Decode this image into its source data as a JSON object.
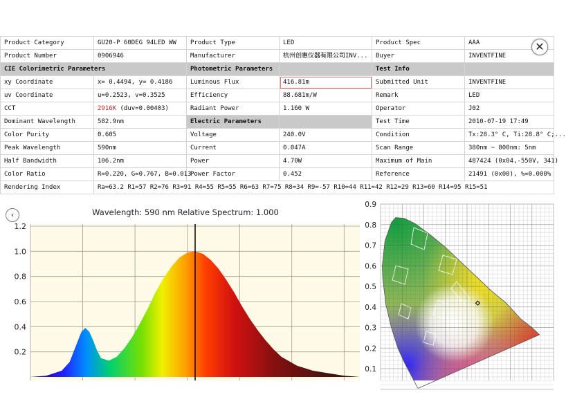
{
  "close_glyph": "✕",
  "back_glyph": "‹",
  "rows": [
    [
      {
        "t": "Product Category"
      },
      {
        "t": "GU20-P 60DEG 94LED WW"
      },
      {
        "t": "Product Type"
      },
      {
        "t": "LED"
      },
      {
        "t": "Product Spec"
      },
      {
        "t": "AAA"
      }
    ],
    [
      {
        "t": "Product Number"
      },
      {
        "t": "0906946"
      },
      {
        "t": "Manufacturer"
      },
      {
        "t": "杭州创惠仪器有限公司INV..."
      },
      {
        "t": "Buyer"
      },
      {
        "t": "INVENTFINE"
      }
    ],
    [
      {
        "t": "CIE Colorimetric Parameters",
        "s": 1
      },
      {
        "t": "",
        "s": 2
      },
      {
        "t": "Photometric Parameters",
        "s": 1
      },
      {
        "t": "",
        "s": 2
      },
      {
        "t": "Test Info",
        "s": 1
      },
      {
        "t": "",
        "s": 2
      }
    ],
    [
      {
        "t": "xy Coordinate"
      },
      {
        "t": "x= 0.4494, y= 0.4186"
      },
      {
        "t": "Luminous Flux"
      },
      {
        "t": "416.81m",
        "r": 1,
        "b": 1
      },
      {
        "t": "Submitted Unit"
      },
      {
        "t": "INVENTFINE"
      }
    ],
    [
      {
        "t": "uv Coordinate"
      },
      {
        "t": "u=0.2523, v=0.3525"
      },
      {
        "t": "Efficiency"
      },
      {
        "t": "88.681m/W"
      },
      {
        "t": "Remark"
      },
      {
        "t": "LED"
      }
    ],
    [
      {
        "t": "CCT"
      },
      {
        "t": "2916K (duv=0.00403)",
        "p": "2916K",
        "q": " (duv=0.00403)"
      },
      {
        "t": "Radiant Power"
      },
      {
        "t": "1.160 W"
      },
      {
        "t": "Operator"
      },
      {
        "t": "J02"
      }
    ],
    [
      {
        "t": "Dominant Wavelength"
      },
      {
        "t": "582.9nm"
      },
      {
        "t": "Electric Parameters",
        "s": 1
      },
      {
        "t": "",
        "s": 2
      },
      {
        "t": "Test Time"
      },
      {
        "t": "2010-07-19 17:49"
      }
    ],
    [
      {
        "t": "Color Purity"
      },
      {
        "t": "0.605"
      },
      {
        "t": "Voltage"
      },
      {
        "t": "240.0V"
      },
      {
        "t": "Condition"
      },
      {
        "t": "Tx:28.3° C, Ti:28.8° C;..."
      }
    ],
    [
      {
        "t": "Peak Wavelength"
      },
      {
        "t": "590nm"
      },
      {
        "t": "Current"
      },
      {
        "t": "0.047A"
      },
      {
        "t": "Scan Range"
      },
      {
        "t": "380nm ~ 800nm: 5nm"
      }
    ],
    [
      {
        "t": "Half Bandwidth"
      },
      {
        "t": "106.2nm"
      },
      {
        "t": "Power"
      },
      {
        "t": "4.70W",
        "r": 1
      },
      {
        "t": "Maximum of Main"
      },
      {
        "t": "487424 (0x04,-550V, 341)"
      }
    ],
    [
      {
        "t": "Color Ratio"
      },
      {
        "t": "R=0.220, G=0.767, B=0.013"
      },
      {
        "t": "Power Factor"
      },
      {
        "t": "0.452"
      },
      {
        "t": "Reference"
      },
      {
        "t": "21491 (0x00), %=0.000%"
      }
    ]
  ],
  "rendering_index": {
    "label": "Rendering Index",
    "value": "Ra=63.2  R1=57 R2=76 R3=91 R4=55 R5=55 R6=63 R7=75 R8=34 R9=-57 R10=44 R11=42 R12=29 R13=60 R14=95 R15=51"
  },
  "spectrum": {
    "header": "Wavelength: 590 nm   Relative Spectrum: 1.000"
  },
  "chart_data": [
    {
      "type": "area",
      "title": "Wavelength: 590 nm   Relative Spectrum: 1.000",
      "xlabel": "",
      "ylabel": "",
      "x_range": [
        380,
        800
      ],
      "ylim": [
        0,
        1.2
      ],
      "y_ticks": [
        "1.2",
        "1.0",
        "0.8",
        "0.6",
        "0.4",
        "0.2"
      ],
      "grid": true,
      "cursor_x": 590,
      "x": [
        380,
        400,
        420,
        430,
        440,
        445,
        450,
        455,
        460,
        465,
        470,
        480,
        490,
        500,
        510,
        520,
        530,
        540,
        550,
        560,
        570,
        580,
        590,
        600,
        610,
        620,
        630,
        640,
        650,
        660,
        670,
        680,
        690,
        700,
        720,
        740,
        760,
        780,
        800
      ],
      "y": [
        0,
        0.01,
        0.05,
        0.12,
        0.28,
        0.36,
        0.39,
        0.36,
        0.29,
        0.21,
        0.15,
        0.13,
        0.16,
        0.23,
        0.32,
        0.43,
        0.55,
        0.68,
        0.79,
        0.88,
        0.95,
        0.99,
        1.0,
        0.98,
        0.93,
        0.86,
        0.77,
        0.67,
        0.56,
        0.46,
        0.37,
        0.29,
        0.22,
        0.16,
        0.09,
        0.05,
        0.03,
        0.01,
        0
      ]
    },
    {
      "type": "scatter",
      "title": "",
      "xlabel": "",
      "ylabel": "",
      "ylim": [
        0,
        0.9
      ],
      "y_ticks": [
        "0.9",
        "0.8",
        "0.7",
        "0.6",
        "0.5",
        "0.4",
        "0.3",
        "0.2",
        "0.1"
      ],
      "grid": true,
      "series": [
        {
          "x": [
            0.4494
          ],
          "y": [
            0.4186
          ]
        }
      ]
    }
  ]
}
